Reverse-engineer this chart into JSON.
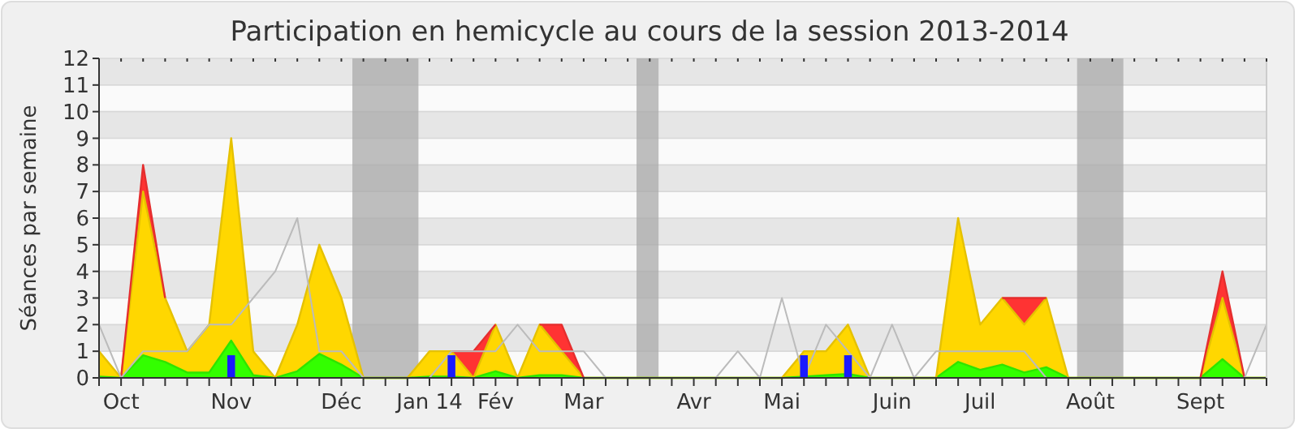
{
  "chart_data": {
    "type": "area",
    "title": "Participation en hemicycle au cours de la session 2013-2014",
    "ylabel": "Séances par semaine",
    "categories": [
      null,
      "Oct",
      null,
      null,
      null,
      null,
      "Nov",
      null,
      null,
      null,
      null,
      "Déc",
      null,
      null,
      null,
      "Jan 14",
      null,
      null,
      "Fév",
      null,
      null,
      null,
      "Mar",
      null,
      null,
      null,
      null,
      "Avr",
      null,
      null,
      null,
      "Mai",
      null,
      null,
      null,
      null,
      "Juin",
      null,
      null,
      null,
      "Juil",
      null,
      null,
      null,
      null,
      "Août",
      null,
      null,
      null,
      null,
      "Sept",
      null,
      null,
      null
    ],
    "ylim": [
      0,
      12
    ],
    "yticks": [
      0,
      1,
      2,
      3,
      4,
      5,
      6,
      7,
      8,
      9,
      10,
      11,
      12
    ],
    "grid": "y",
    "stacked": true,
    "series": [
      {
        "color": "#33ff00",
        "values": [
          0.05,
          0,
          0.85,
          0.6,
          0.2,
          0.2,
          1.4,
          0.1,
          0,
          0.25,
          0.9,
          0.5,
          0,
          0,
          0,
          0.05,
          0.05,
          0,
          0.25,
          0,
          0.1,
          0.1,
          0,
          0,
          0,
          0,
          0,
          0,
          0,
          0,
          0,
          0,
          0.05,
          0.1,
          0.15,
          0,
          0,
          0,
          0,
          0.6,
          0.3,
          0.5,
          0.2,
          0.4,
          0,
          0,
          0,
          0,
          0,
          0,
          0,
          0.7,
          0,
          0
        ]
      },
      {
        "color": "#ffd700",
        "values": [
          0.95,
          0,
          6.15,
          2.4,
          0.8,
          1.8,
          7.6,
          0.9,
          0,
          1.75,
          4.1,
          2.5,
          0,
          0,
          0,
          0.95,
          0.95,
          0,
          1.75,
          0,
          1.9,
          0.9,
          0,
          0,
          0,
          0,
          0,
          0,
          0,
          0,
          0,
          0,
          0.95,
          0.9,
          1.85,
          0,
          0,
          0,
          0,
          5.4,
          1.7,
          2.5,
          1.8,
          2.6,
          0,
          0,
          0,
          0,
          0,
          0,
          0,
          2.3,
          0,
          0
        ]
      },
      {
        "color": "#ff3333",
        "values": [
          null,
          0,
          1,
          0,
          null,
          null,
          null,
          null,
          null,
          null,
          null,
          null,
          null,
          null,
          null,
          null,
          0,
          1,
          0,
          null,
          0,
          1,
          0,
          null,
          null,
          null,
          null,
          null,
          null,
          null,
          null,
          null,
          null,
          null,
          null,
          null,
          null,
          null,
          null,
          null,
          null,
          0,
          1,
          0,
          null,
          null,
          null,
          null,
          null,
          null,
          0,
          1,
          0,
          null
        ]
      },
      {
        "type": "line",
        "color": "#bbbbbb",
        "values": [
          2,
          0,
          1,
          1,
          1,
          2,
          2,
          3,
          4,
          6,
          1,
          1,
          0,
          0,
          0,
          0,
          1,
          1,
          1,
          2,
          1,
          1,
          1,
          0,
          0,
          0,
          0,
          0,
          0,
          1,
          0,
          3,
          0,
          2,
          1,
          0,
          2,
          0,
          1,
          1,
          1,
          1,
          1,
          0,
          0,
          0,
          0,
          0,
          0,
          0,
          0,
          0,
          0,
          2
        ]
      },
      {
        "type": "bar",
        "color": "#1a1aff",
        "values": [
          null,
          null,
          null,
          null,
          null,
          null,
          0.85,
          null,
          null,
          null,
          null,
          null,
          null,
          null,
          null,
          null,
          0.85,
          null,
          null,
          null,
          null,
          null,
          null,
          null,
          null,
          null,
          null,
          null,
          null,
          null,
          null,
          null,
          0.85,
          null,
          0.85,
          null,
          null,
          null,
          null,
          null,
          null,
          null,
          null,
          null,
          null,
          null,
          null,
          null,
          null,
          null,
          null,
          null,
          null,
          null
        ]
      }
    ]
  }
}
